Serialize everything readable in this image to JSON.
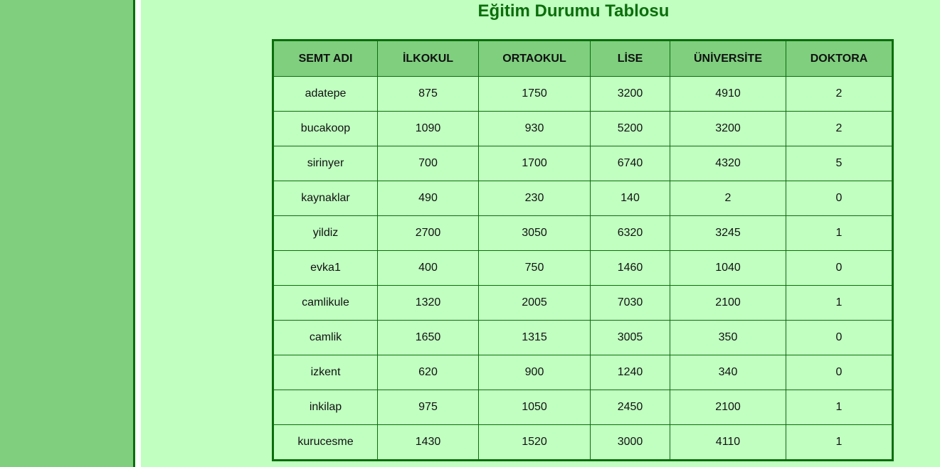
{
  "page": {
    "title": "Eğitim Durumu Tablosu"
  },
  "colors": {
    "background": "#c1ffc1",
    "sidebar": "#7fcf7f",
    "accent": "#0b6e0b",
    "header_bg": "#7fcf7f"
  },
  "table": {
    "headers": [
      "SEMT ADI",
      "İLKOKUL",
      "ORTAOKUL",
      "LİSE",
      "ÜNİVERSİTE",
      "DOKTORA"
    ],
    "rows": [
      [
        "adatepe",
        "875",
        "1750",
        "3200",
        "4910",
        "2"
      ],
      [
        "bucakoop",
        "1090",
        "930",
        "5200",
        "3200",
        "2"
      ],
      [
        "sirinyer",
        "700",
        "1700",
        "6740",
        "4320",
        "5"
      ],
      [
        "kaynaklar",
        "490",
        "230",
        "140",
        "2",
        "0"
      ],
      [
        "yildiz",
        "2700",
        "3050",
        "6320",
        "3245",
        "1"
      ],
      [
        "evka1",
        "400",
        "750",
        "1460",
        "1040",
        "0"
      ],
      [
        "camlikule",
        "1320",
        "2005",
        "7030",
        "2100",
        "1"
      ],
      [
        "camlik",
        "1650",
        "1315",
        "3005",
        "350",
        "0"
      ],
      [
        "izkent",
        "620",
        "900",
        "1240",
        "340",
        "0"
      ],
      [
        "inkilap",
        "975",
        "1050",
        "2450",
        "2100",
        "1"
      ],
      [
        "kurucesme",
        "1430",
        "1520",
        "3000",
        "4110",
        "1"
      ]
    ]
  }
}
